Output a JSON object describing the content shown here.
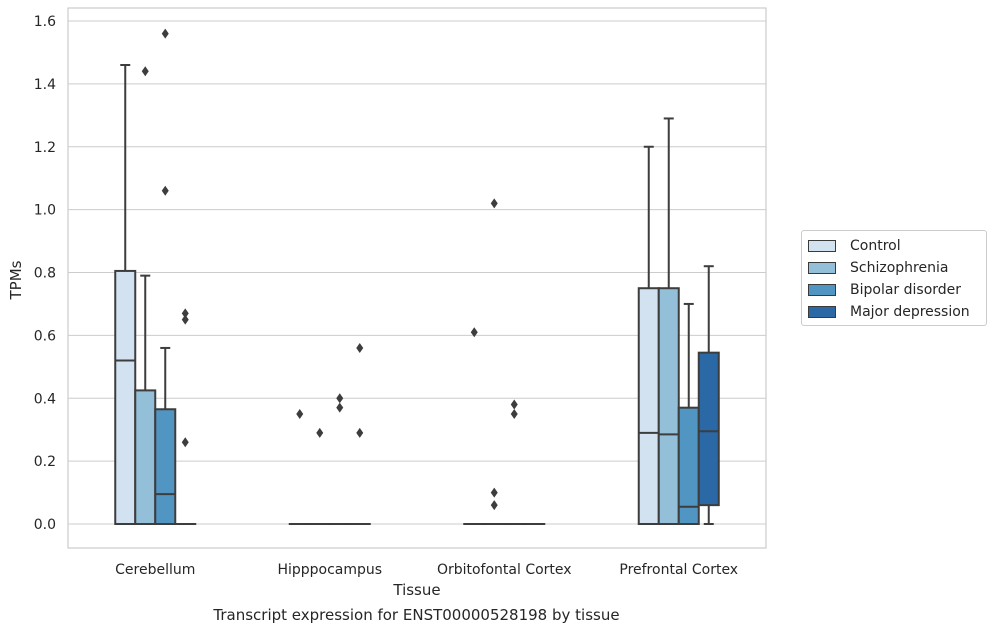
{
  "chart_data": {
    "type": "box",
    "title": "",
    "caption": "Transcript expression for ENST00000528198 by tissue",
    "xlabel": "Tissue",
    "ylabel": "TPMs",
    "ylim": [
      -0.08,
      1.64
    ],
    "yticks": [
      0.0,
      0.2,
      0.4,
      0.6,
      0.8,
      1.0,
      1.2,
      1.4,
      1.6
    ],
    "ytick_labels": [
      "0.0",
      "0.2",
      "0.4",
      "0.6",
      "0.8",
      "1.0",
      "1.2",
      "1.4",
      "1.6"
    ],
    "grid": true,
    "legend_position": "right",
    "categories": [
      "Cerebellum",
      "Hipppocampus",
      "Orbitofontal Cortex",
      "Prefrontal Cortex"
    ],
    "series": [
      {
        "name": "Control",
        "color": "#d2e2f0"
      },
      {
        "name": "Schizophrenia",
        "color": "#93bfd8"
      },
      {
        "name": "Bipolar disorder",
        "color": "#5195c3"
      },
      {
        "name": "Major depression",
        "color": "#2a68a6"
      }
    ],
    "boxes": [
      [
        {
          "q1": 0.0,
          "median": 0.52,
          "q3": 0.805,
          "whisker_low": 0.0,
          "whisker_high": 1.46,
          "outliers": []
        },
        {
          "q1": 0.0,
          "median": 0.0,
          "q3": 0.425,
          "whisker_low": 0.0,
          "whisker_high": 0.79,
          "outliers": [
            1.44
          ]
        },
        {
          "q1": 0.0,
          "median": 0.095,
          "q3": 0.365,
          "whisker_low": 0.0,
          "whisker_high": 0.56,
          "outliers": [
            1.56,
            1.06
          ]
        },
        {
          "q1": 0.0,
          "median": 0.0,
          "q3": 0.0,
          "whisker_low": 0.0,
          "whisker_high": 0.0,
          "outliers": [
            0.67,
            0.65,
            0.26
          ]
        }
      ],
      [
        {
          "q1": 0.0,
          "median": 0.0,
          "q3": 0.0,
          "whisker_low": 0.0,
          "whisker_high": 0.0,
          "outliers": [
            0.35
          ]
        },
        {
          "q1": 0.0,
          "median": 0.0,
          "q3": 0.0,
          "whisker_low": 0.0,
          "whisker_high": 0.0,
          "outliers": [
            0.29
          ]
        },
        {
          "q1": 0.0,
          "median": 0.0,
          "q3": 0.0,
          "whisker_low": 0.0,
          "whisker_high": 0.0,
          "outliers": [
            0.4,
            0.37
          ]
        },
        {
          "q1": 0.0,
          "median": 0.0,
          "q3": 0.0,
          "whisker_low": 0.0,
          "whisker_high": 0.0,
          "outliers": [
            0.56,
            0.29
          ]
        }
      ],
      [
        {
          "q1": 0.0,
          "median": 0.0,
          "q3": 0.0,
          "whisker_low": 0.0,
          "whisker_high": 0.0,
          "outliers": [
            0.61
          ]
        },
        {
          "q1": 0.0,
          "median": 0.0,
          "q3": 0.0,
          "whisker_low": 0.0,
          "whisker_high": 0.0,
          "outliers": [
            1.02,
            0.1,
            0.06
          ]
        },
        {
          "q1": 0.0,
          "median": 0.0,
          "q3": 0.0,
          "whisker_low": 0.0,
          "whisker_high": 0.0,
          "outliers": [
            0.38,
            0.35
          ]
        },
        {
          "q1": 0.0,
          "median": 0.0,
          "q3": 0.0,
          "whisker_low": 0.0,
          "whisker_high": 0.0,
          "outliers": []
        }
      ],
      [
        {
          "q1": 0.0,
          "median": 0.29,
          "q3": 0.75,
          "whisker_low": 0.0,
          "whisker_high": 1.2,
          "outliers": []
        },
        {
          "q1": 0.0,
          "median": 0.285,
          "q3": 0.75,
          "whisker_low": 0.0,
          "whisker_high": 1.29,
          "outliers": []
        },
        {
          "q1": 0.0,
          "median": 0.055,
          "q3": 0.37,
          "whisker_low": 0.0,
          "whisker_high": 0.7,
          "outliers": []
        },
        {
          "q1": 0.06,
          "median": 0.295,
          "q3": 0.545,
          "whisker_low": 0.0,
          "whisker_high": 0.82,
          "outliers": []
        }
      ]
    ]
  }
}
